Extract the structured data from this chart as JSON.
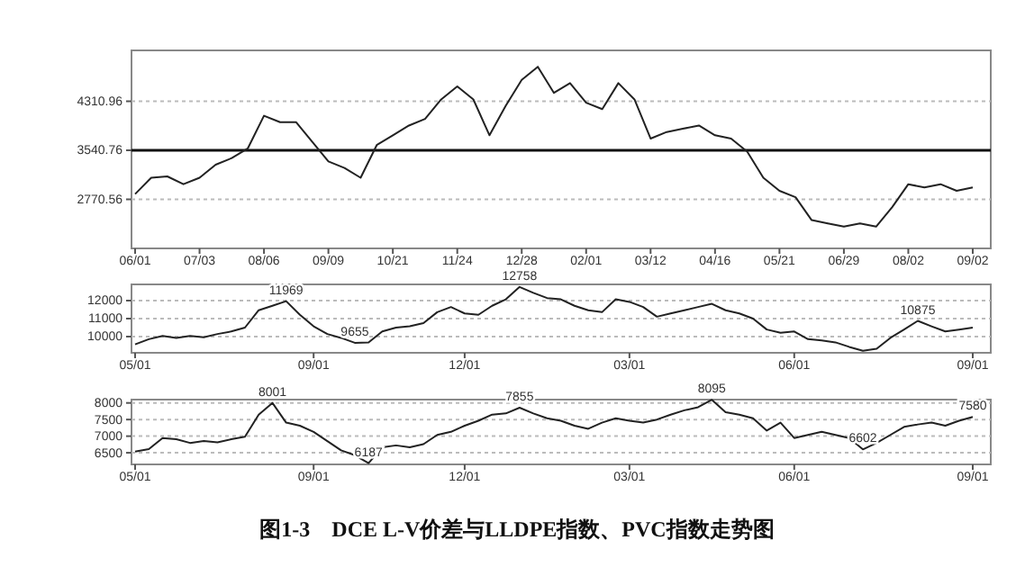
{
  "chart_data": [
    {
      "type": "line",
      "categories": [
        "06/01",
        null,
        null,
        null,
        "07/03",
        null,
        null,
        null,
        "08/06",
        null,
        null,
        null,
        "09/09",
        null,
        null,
        null,
        "10/21",
        null,
        null,
        null,
        "11/24",
        null,
        null,
        null,
        "12/28",
        null,
        null,
        null,
        "02/01",
        null,
        null,
        null,
        "03/12",
        null,
        null,
        null,
        "04/16",
        null,
        null,
        null,
        "05/21",
        null,
        null,
        null,
        "06/29",
        null,
        null,
        null,
        "08/02",
        null,
        null,
        null,
        "09/02"
      ],
      "series": [
        {
          "color": "#222222",
          "values": [
            2854,
            3110,
            3131,
            3008,
            3110,
            3315,
            3418,
            3572,
            4084,
            3982,
            3982,
            3674,
            3366,
            3264,
            3110,
            3623,
            3777,
            3930,
            4033,
            4340,
            4545,
            4340,
            3777,
            4238,
            4648,
            4853,
            4443,
            4596,
            4289,
            4187,
            4596,
            4340,
            3725,
            3828,
            3879,
            3930,
            3777,
            3725,
            3520,
            3110,
            2905,
            2803,
            2444,
            2393,
            2342,
            2393,
            2342,
            2649,
            3008,
            2957,
            3008,
            2905,
            2957
          ]
        }
      ],
      "ylim": [
        2000,
        5110
      ],
      "yticks": [
        2770.56,
        3540.76,
        4310.96
      ],
      "grid": "y",
      "ref_lines": [
        {
          "axis": "y",
          "value": 3540.76
        }
      ]
    },
    {
      "type": "line",
      "categories": [
        "05/01",
        null,
        null,
        null,
        null,
        null,
        null,
        null,
        null,
        null,
        null,
        null,
        null,
        "09/01",
        null,
        null,
        null,
        null,
        null,
        null,
        null,
        null,
        null,
        null,
        "12/01",
        null,
        null,
        null,
        null,
        null,
        null,
        null,
        null,
        null,
        null,
        null,
        "03/01",
        null,
        null,
        null,
        null,
        null,
        null,
        null,
        null,
        null,
        null,
        null,
        "06/01",
        null,
        null,
        null,
        null,
        null,
        null,
        null,
        null,
        null,
        null,
        null,
        null,
        "09/01"
      ],
      "series": [
        {
          "color": "#222222",
          "values": [
            9571,
            9857,
            10036,
            9929,
            10036,
            9964,
            10143,
            10286,
            10500,
            11464,
            11714,
            11969,
            11214,
            10571,
            10143,
            9929,
            9655,
            9679,
            10286,
            10500,
            10571,
            10750,
            11357,
            11643,
            11286,
            11214,
            11714,
            12071,
            12758,
            12429,
            12143,
            12071,
            11714,
            11464,
            11357,
            12071,
            11929,
            11643,
            11107,
            11286,
            11464,
            11643,
            11821,
            11464,
            11286,
            11000,
            10393,
            10214,
            10286,
            9857,
            9786,
            9679,
            9429,
            9214,
            9321,
            9929,
            10393,
            10875,
            10571,
            10286,
            10393,
            10500
          ],
          "value_labels": [
            null,
            null,
            null,
            null,
            null,
            null,
            null,
            null,
            null,
            null,
            null,
            "11969",
            null,
            null,
            null,
            null,
            "9655",
            null,
            null,
            null,
            null,
            null,
            null,
            null,
            null,
            null,
            null,
            null,
            "12758",
            null,
            null,
            null,
            null,
            null,
            null,
            null,
            null,
            null,
            null,
            null,
            null,
            null,
            null,
            null,
            null,
            null,
            null,
            null,
            null,
            null,
            null,
            null,
            null,
            null,
            null,
            null,
            null,
            "10875",
            null,
            null,
            null,
            null
          ]
        }
      ],
      "ylim": [
        9100,
        12900
      ],
      "yticks": [
        10000,
        11000,
        12000
      ],
      "grid": "y"
    },
    {
      "type": "line",
      "title": "图1-3　DCE L-V价差与LLDPE指数、PVC指数走势图",
      "categories": [
        "05/01",
        null,
        null,
        null,
        null,
        null,
        null,
        null,
        null,
        null,
        null,
        null,
        null,
        "09/01",
        null,
        null,
        null,
        null,
        null,
        null,
        null,
        null,
        null,
        null,
        "12/01",
        null,
        null,
        null,
        null,
        null,
        null,
        null,
        null,
        null,
        null,
        null,
        "03/01",
        null,
        null,
        null,
        null,
        null,
        null,
        null,
        null,
        null,
        null,
        null,
        "06/01",
        null,
        null,
        null,
        null,
        null,
        null,
        null,
        null,
        null,
        null,
        null,
        null,
        "09/01"
      ],
      "series": [
        {
          "color": "#222222",
          "values": [
            6537,
            6611,
            6944,
            6907,
            6796,
            6852,
            6815,
            6907,
            6981,
            7648,
            8001,
            7407,
            7315,
            7130,
            6852,
            6574,
            6426,
            6187,
            6667,
            6722,
            6667,
            6759,
            7037,
            7130,
            7315,
            7463,
            7648,
            7685,
            7855,
            7685,
            7537,
            7463,
            7315,
            7222,
            7407,
            7537,
            7463,
            7407,
            7500,
            7648,
            7778,
            7870,
            8095,
            7722,
            7648,
            7537,
            7167,
            7407,
            6944,
            7037,
            7130,
            7037,
            6944,
            6602,
            6796,
            7037,
            7278,
            7352,
            7407,
            7315,
            7463,
            7580
          ],
          "value_labels": [
            null,
            null,
            null,
            null,
            null,
            null,
            null,
            null,
            null,
            null,
            "8001",
            null,
            null,
            null,
            null,
            null,
            null,
            "6187",
            null,
            null,
            null,
            null,
            null,
            null,
            null,
            null,
            null,
            null,
            "7855",
            null,
            null,
            null,
            null,
            null,
            null,
            null,
            null,
            null,
            null,
            null,
            null,
            null,
            "8095",
            null,
            null,
            null,
            null,
            null,
            null,
            null,
            null,
            null,
            null,
            "6602",
            null,
            null,
            null,
            null,
            null,
            null,
            null,
            "7580"
          ]
        }
      ],
      "ylim": [
        6150,
        8100
      ],
      "yticks": [
        6500,
        7000,
        7500,
        8000
      ],
      "grid": "y"
    }
  ]
}
